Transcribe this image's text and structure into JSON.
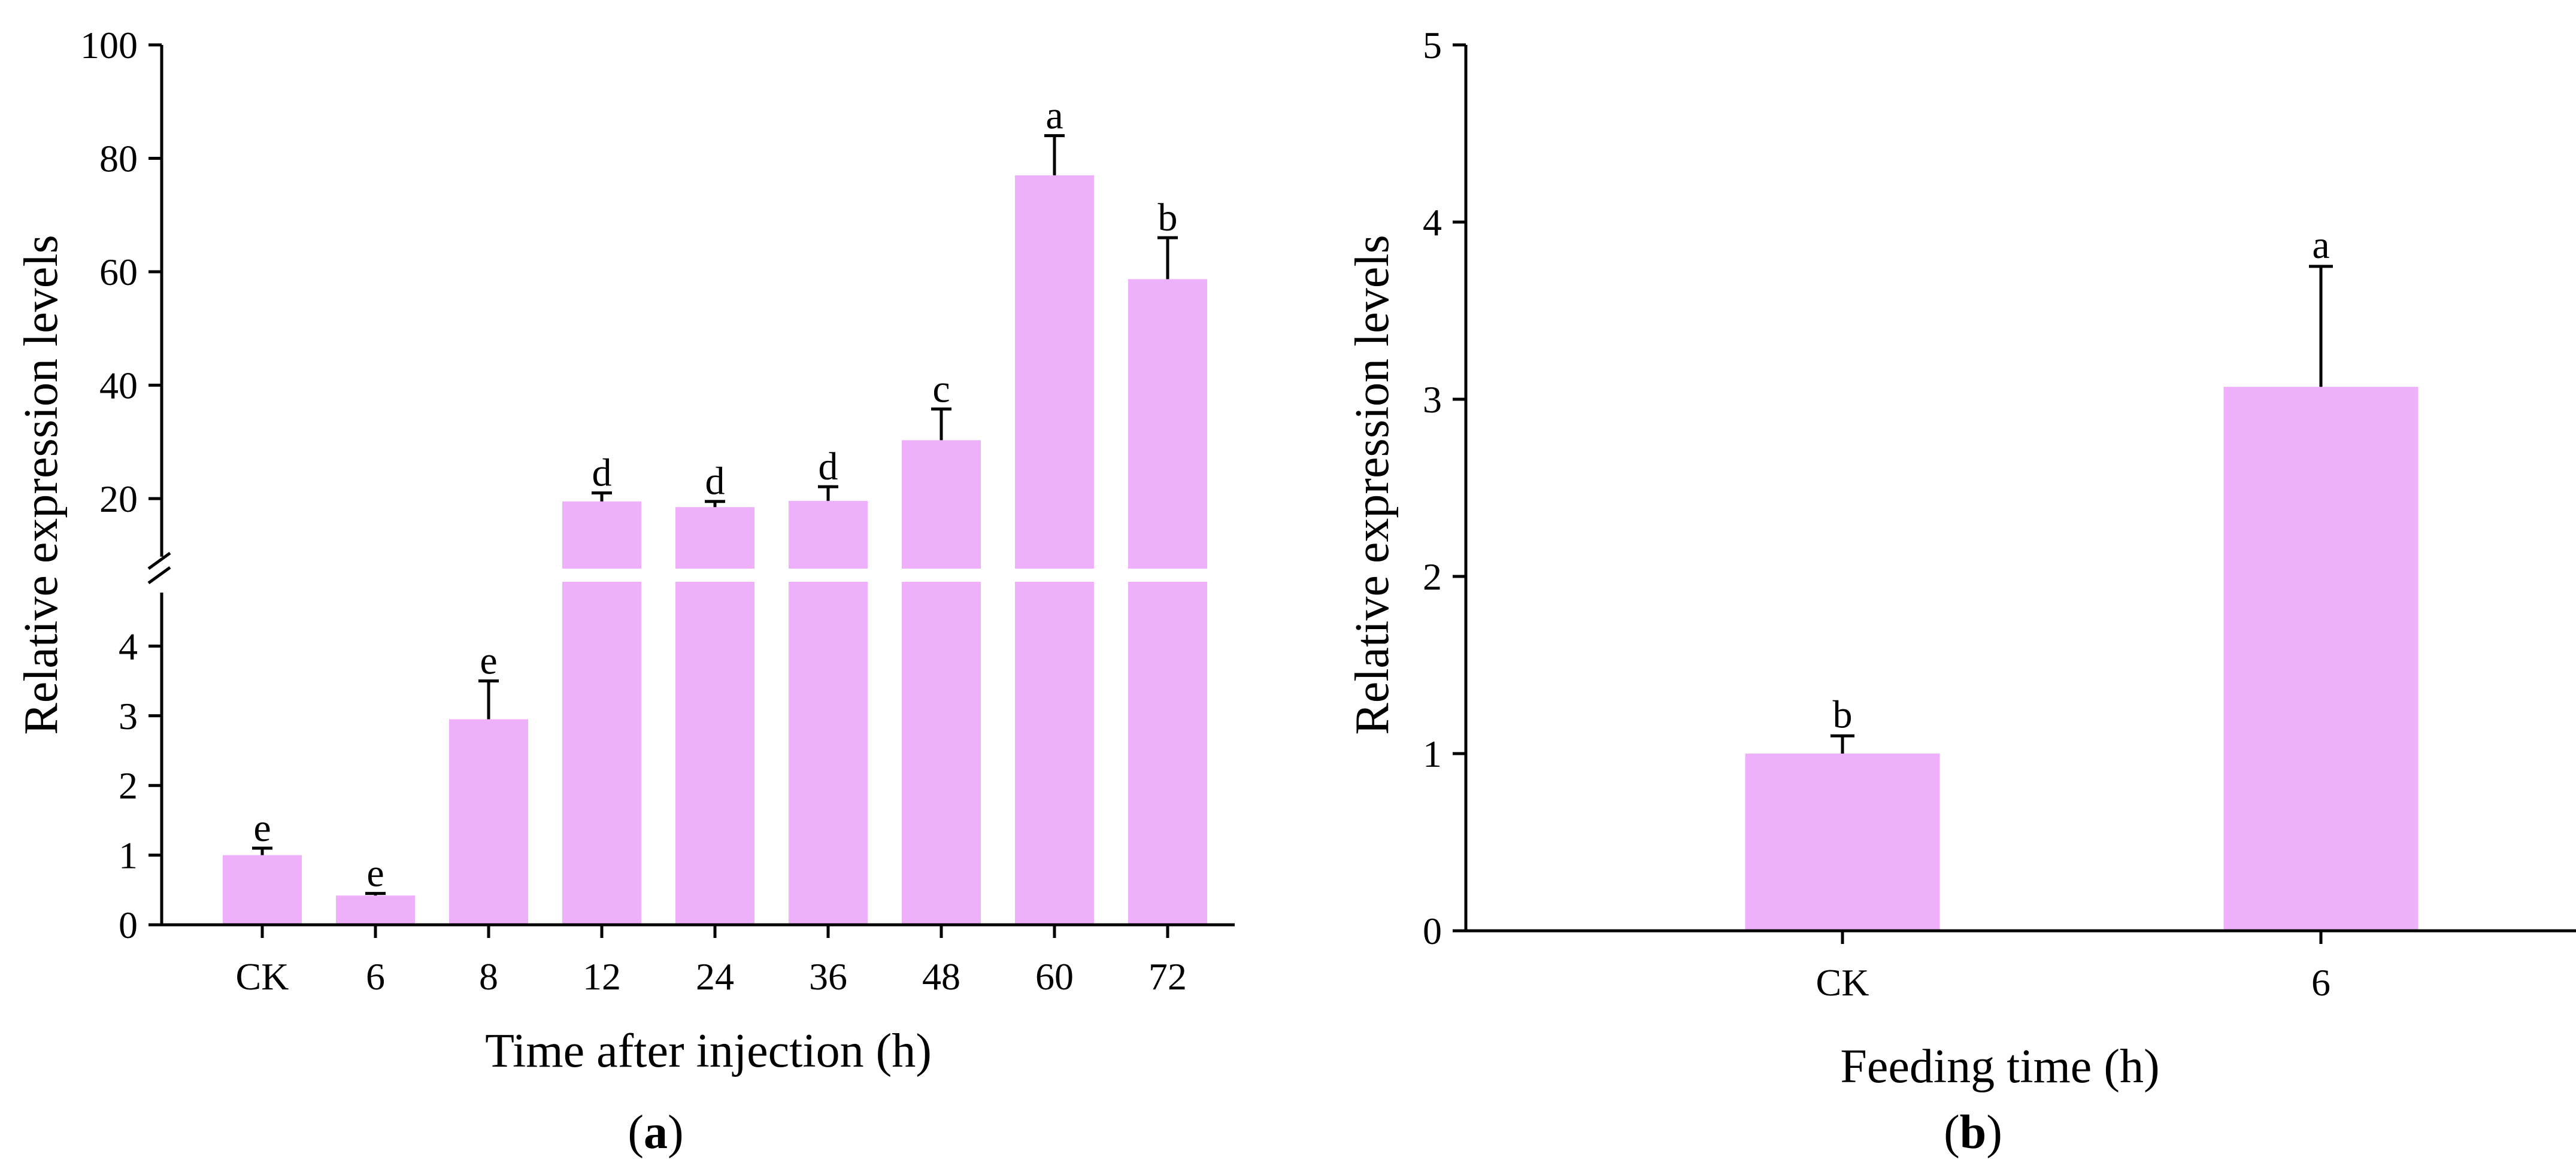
{
  "chart_data": [
    {
      "panel_id": "a",
      "type": "bar",
      "axis_break": true,
      "categories": [
        "CK",
        "6",
        "8",
        "12",
        "24",
        "36",
        "48",
        "60",
        "72"
      ],
      "values": [
        1.0,
        0.42,
        2.95,
        19.5,
        18.5,
        19.6,
        30.3,
        77.0,
        58.7
      ],
      "errors": [
        0.1,
        0.03,
        0.55,
        1.5,
        1.0,
        2.5,
        5.5,
        7.0,
        7.3
      ],
      "letters": [
        "e",
        "e",
        "e",
        "d",
        "d",
        "d",
        "c",
        "a",
        "b"
      ],
      "title": "",
      "xlabel": "Time after injection (h)",
      "ylabel": "Relative expression levels",
      "lower_ylim": [
        0,
        5
      ],
      "lower_ticks": [
        "0",
        "1",
        "2",
        "3",
        "4"
      ],
      "upper_ylim": [
        10,
        100
      ],
      "upper_ticks": [
        "20",
        "40",
        "60",
        "80",
        "100"
      ],
      "caption_open": "(",
      "caption_letter": "a",
      "caption_close": ")",
      "bar_color": "#eeb0fa"
    },
    {
      "panel_id": "b",
      "type": "bar",
      "categories": [
        "CK",
        "6"
      ],
      "values": [
        1.0,
        3.07
      ],
      "errors": [
        0.1,
        0.68
      ],
      "letters": [
        "b",
        "a"
      ],
      "title": "",
      "xlabel": "Feeding time (h)",
      "ylabel": "Relative expression levels",
      "ylim": [
        0,
        5
      ],
      "yticks": [
        "0",
        "1",
        "2",
        "3",
        "4",
        "5"
      ],
      "caption_open": "(",
      "caption_letter": "b",
      "caption_close": ")",
      "bar_color": "#eeb0fa"
    }
  ]
}
